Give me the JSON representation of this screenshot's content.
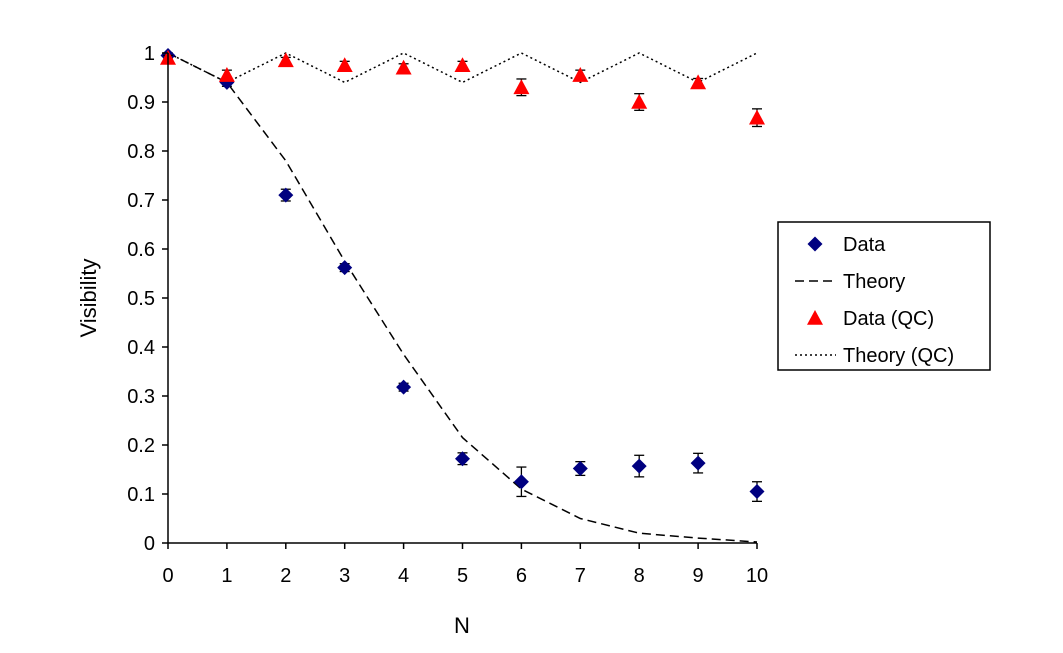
{
  "chart_data": {
    "type": "scatter",
    "xlabel": "N",
    "ylabel": "Visibility",
    "xlim": [
      0,
      10
    ],
    "ylim": [
      0,
      1
    ],
    "x_ticks": [
      "0",
      "1",
      "2",
      "3",
      "4",
      "5",
      "6",
      "7",
      "8",
      "9",
      "10"
    ],
    "y_ticks": [
      "0",
      "0.1",
      "0.2",
      "0.3",
      "0.4",
      "0.5",
      "0.6",
      "0.7",
      "0.8",
      "0.9",
      "1"
    ],
    "grid": false,
    "legend_position": "right",
    "series": [
      {
        "name": "Data",
        "kind": "markers",
        "marker": "diamond",
        "color": "#000080",
        "x": [
          0,
          1,
          2,
          3,
          4,
          5,
          6,
          7,
          8,
          9,
          10
        ],
        "y": [
          0.995,
          0.94,
          0.71,
          0.562,
          0.318,
          0.172,
          0.125,
          0.152,
          0.157,
          0.163,
          0.105
        ],
        "err": [
          0.005,
          0.008,
          0.012,
          0.008,
          0.008,
          0.012,
          0.03,
          0.014,
          0.022,
          0.02,
          0.02
        ]
      },
      {
        "name": "Theory",
        "kind": "line",
        "dash": "dashed",
        "color": "#000000",
        "x": [
          0,
          1,
          2,
          3,
          4,
          5,
          6,
          7,
          8,
          9,
          10
        ],
        "y": [
          1.0,
          0.94,
          0.78,
          0.575,
          0.385,
          0.215,
          0.11,
          0.05,
          0.02,
          0.01,
          0.002
        ]
      },
      {
        "name": "Data (QC)",
        "kind": "markers",
        "marker": "triangle",
        "color": "#ff0000",
        "x": [
          0,
          1,
          2,
          3,
          4,
          5,
          6,
          7,
          8,
          9,
          10
        ],
        "y": [
          0.99,
          0.955,
          0.985,
          0.975,
          0.97,
          0.975,
          0.93,
          0.955,
          0.9,
          0.94,
          0.868
        ],
        "err": [
          0.005,
          0.01,
          0.006,
          0.008,
          0.008,
          0.008,
          0.017,
          0.01,
          0.017,
          0.008,
          0.018
        ]
      },
      {
        "name": "Theory (QC)",
        "kind": "line",
        "dash": "dotted",
        "color": "#000000",
        "x": [
          0,
          1,
          2,
          3,
          4,
          5,
          6,
          7,
          8,
          9,
          10
        ],
        "y": [
          1.0,
          0.94,
          1.0,
          0.94,
          1.0,
          0.94,
          1.0,
          0.94,
          1.0,
          0.94,
          1.0
        ]
      }
    ]
  }
}
